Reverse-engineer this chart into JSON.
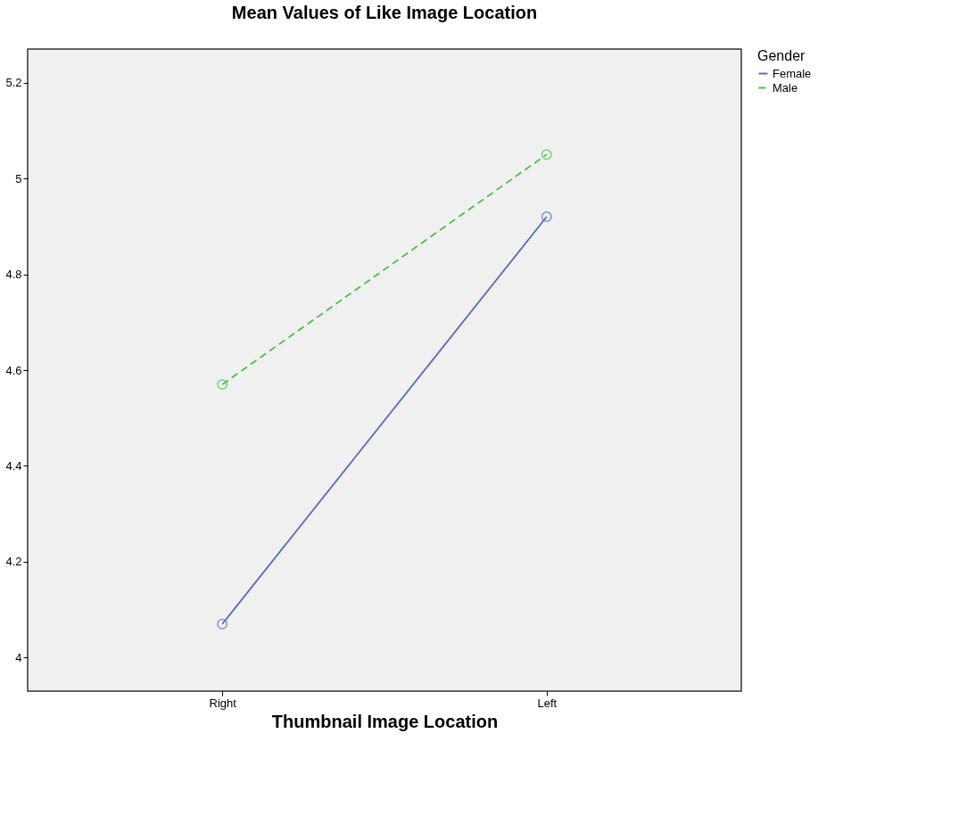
{
  "chart_data": {
    "type": "line",
    "title": "Mean Values of Like Image Location",
    "xlabel": "Thumbnail Image Location",
    "categories": [
      "Right",
      "Left"
    ],
    "series": [
      {
        "name": "Female",
        "color": "#5a6eb4",
        "values": [
          4.07,
          4.92
        ],
        "line_style": "solid"
      },
      {
        "name": "Male",
        "color": "#4dbd4d",
        "values": [
          4.57,
          5.05
        ],
        "line_style": "dashed"
      }
    ],
    "legend_title": "Gender",
    "legend": "top right",
    "marker": "circle",
    "grid": false,
    "ylim": [
      3.93,
      5.27
    ],
    "yticks": [
      {
        "value": 4,
        "label": "4"
      },
      4.2,
      4.4,
      4.6,
      4.8,
      {
        "value": 5,
        "label": "5"
      },
      5.2
    ]
  }
}
